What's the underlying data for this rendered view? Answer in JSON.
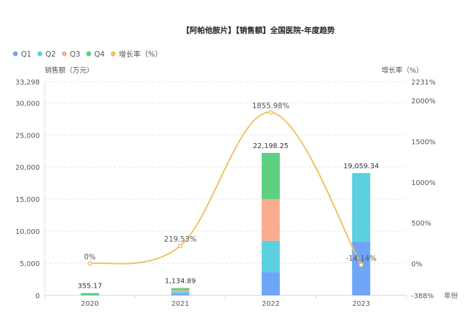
{
  "chart_data": {
    "type": "bar+line",
    "title": "【阿帕他胺片】【销售额】全国医院-年度趋势",
    "categories": [
      "2020",
      "2021",
      "2022",
      "2023"
    ],
    "xlabel": "年份",
    "ylabel_left": "销售额（万元）",
    "ylabel_right": "增长率（%）",
    "ylim_left": [
      0,
      33298
    ],
    "ylim_right": [
      -388,
      2231
    ],
    "left_ticks": [
      "0",
      "5,000",
      "10,000",
      "15,000",
      "20,000",
      "25,000",
      "30,000",
      "33,298"
    ],
    "left_tick_values": [
      0,
      5000,
      10000,
      15000,
      20000,
      25000,
      30000,
      33298
    ],
    "right_ticks": [
      "-388%",
      "0%",
      "500%",
      "1000%",
      "1500%",
      "2000%",
      "2231%"
    ],
    "right_tick_values": [
      -388,
      0,
      500,
      1000,
      1500,
      2000,
      2231
    ],
    "legend": [
      "Q1",
      "Q2",
      "Q3",
      "Q4",
      "增长率（%）"
    ],
    "legend_placement": "top-left",
    "series": [
      {
        "name": "Q1",
        "color": "#6fa5f7",
        "values": [
          0,
          250,
          3600,
          8400
        ]
      },
      {
        "name": "Q2",
        "color": "#5bd0de",
        "values": [
          0,
          280,
          4900,
          10659.34
        ]
      },
      {
        "name": "Q3",
        "color": "#fbab8f",
        "values": [
          0,
          290,
          6500,
          0
        ]
      },
      {
        "name": "Q4",
        "color": "#5ccf80",
        "values": [
          355.17,
          314.89,
          7198.25,
          0
        ]
      }
    ],
    "totals": [
      355.17,
      1134.89,
      22198.25,
      19059.34
    ],
    "total_labels": [
      "355.17",
      "1,134.89",
      "22,198.25",
      "19,059.34"
    ],
    "growth": {
      "name": "增长率（%）",
      "color": "#f0c060",
      "values": [
        0,
        219.53,
        1855.98,
        -14.14
      ],
      "labels": [
        "0%",
        "219.53%",
        "1855.98%",
        "-14.14%"
      ]
    }
  }
}
